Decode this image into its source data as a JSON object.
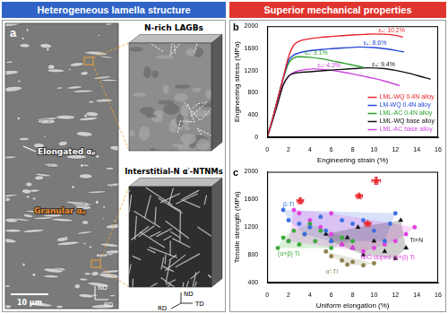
{
  "headers": [
    "Heterogeneous lamella structure",
    "Superior mechanical properties"
  ],
  "panel_a": {
    "letter": "a",
    "micrograph_labels": [
      "Elongated αₚ",
      "Granular αₚ"
    ],
    "scale_bar": "10 μm",
    "micrograph_axes": [
      "ND",
      "RD"
    ],
    "insets": [
      {
        "title": "N-rich LAGBs"
      },
      {
        "title": "Interstitial-N α′-NTNMs",
        "axes": [
          "ND",
          "RD",
          "TD"
        ]
      }
    ]
  },
  "chart_data": [
    {
      "type": "line",
      "panel_label": "b",
      "x_label": "Engineering strain (%)",
      "y_label": "Engineering stress (MPa)",
      "xlim": [
        0,
        16
      ],
      "xticks": [
        0,
        2,
        4,
        6,
        8,
        10,
        12,
        14,
        16
      ],
      "ylim": [
        0,
        2000
      ],
      "yticks": [
        0,
        400,
        800,
        1200,
        1600,
        2000
      ],
      "grid": false,
      "legend": "lower right",
      "series": [
        {
          "name": "LML-WQ 0.4N alloy",
          "color": "#e8262d",
          "annotation": "εᵤ: 10.2%",
          "x": [
            0,
            0.5,
            1,
            1.5,
            2,
            2.5,
            3,
            4,
            5,
            6,
            7,
            8,
            9,
            10,
            11,
            12,
            12.7
          ],
          "values": [
            0,
            330,
            700,
            1070,
            1450,
            1660,
            1730,
            1775,
            1800,
            1815,
            1830,
            1842,
            1852,
            1860,
            1855,
            1835,
            1805
          ]
        },
        {
          "name": "LM-WQ 0.4N alloy",
          "color": "#2445d8",
          "annotation": "εᵤ: 8.6%",
          "x": [
            0,
            0.5,
            1,
            1.5,
            2,
            2.5,
            3,
            4,
            5,
            6,
            7,
            8,
            8.6,
            10,
            11,
            12,
            12.8
          ],
          "values": [
            0,
            330,
            700,
            1070,
            1380,
            1480,
            1520,
            1560,
            1580,
            1595,
            1608,
            1618,
            1625,
            1615,
            1595,
            1565,
            1535
          ]
        },
        {
          "name": "LML-AC 0.4N alloy",
          "color": "#2ca02c",
          "annotation": "εᵤ: 3.1%",
          "x": [
            0,
            0.5,
            1,
            1.5,
            2,
            2.5,
            3.1,
            4,
            5,
            6,
            7,
            8,
            9
          ],
          "values": [
            0,
            330,
            700,
            1050,
            1330,
            1430,
            1450,
            1440,
            1415,
            1380,
            1340,
            1300,
            1260
          ]
        },
        {
          "name": "LML-WQ base alloy",
          "color": "#111111",
          "annotation": "εᵤ: 9.4%",
          "x": [
            0,
            0.5,
            1,
            1.5,
            2,
            2.5,
            3,
            4,
            5,
            6,
            7,
            8,
            9.4,
            11,
            12,
            13,
            14,
            15.3
          ],
          "values": [
            0,
            300,
            620,
            940,
            1100,
            1150,
            1165,
            1180,
            1195,
            1210,
            1222,
            1235,
            1250,
            1235,
            1205,
            1165,
            1115,
            1045
          ]
        },
        {
          "name": "LML-AC base alloy",
          "color": "#cc44dd",
          "annotation": "εᵤ: 4.3%",
          "x": [
            0,
            0.5,
            1,
            1.5,
            2,
            2.5,
            3,
            4.3,
            5,
            6,
            7,
            8,
            9,
            10,
            11,
            12.4
          ],
          "values": [
            0,
            300,
            620,
            940,
            1100,
            1170,
            1200,
            1230,
            1225,
            1205,
            1175,
            1140,
            1100,
            1060,
            1010,
            930
          ]
        }
      ]
    },
    {
      "type": "scatter",
      "panel_label": "c",
      "x_label": "Uniform elongation (%)",
      "y_label": "Tensile strength (MPa)",
      "xlim": [
        0,
        16
      ],
      "xticks": [
        0,
        2,
        4,
        6,
        8,
        10,
        12,
        14,
        16
      ],
      "ylim": [
        400,
        2000
      ],
      "yticks": [
        400,
        800,
        1200,
        1600,
        2000
      ],
      "grid": false,
      "series": [
        {
          "name": "β-Ti",
          "color": "#3b6fe0",
          "marker": "circle",
          "x": [
            1.5,
            2,
            3,
            3.5,
            4,
            5,
            5.5,
            6,
            7,
            8,
            9,
            10,
            11,
            11.5,
            12
          ],
          "values": [
            1450,
            1300,
            1250,
            1100,
            1200,
            1350,
            1150,
            1000,
            1300,
            1250,
            1300,
            1150,
            1000,
            1250,
            1400
          ]
        },
        {
          "name": "(α+β) Ti",
          "color": "#3aaa3a",
          "marker": "circle",
          "x": [
            1,
            1.5,
            2,
            2.5,
            3,
            3.5,
            4,
            4.5,
            5,
            6,
            7,
            8
          ],
          "values": [
            900,
            1050,
            1000,
            1150,
            950,
            1100,
            1250,
            1000,
            1150,
            900,
            1050,
            1000
          ]
        },
        {
          "name": "N/O doped (α+β) Ti",
          "color": "#e040e0",
          "marker": "circle",
          "x": [
            2,
            2.5,
            3,
            4,
            5,
            6,
            6,
            7,
            8,
            9,
            10,
            11,
            12,
            13,
            13.8
          ],
          "values": [
            1000,
            1450,
            1400,
            1300,
            1200,
            1100,
            1400,
            950,
            900,
            850,
            900,
            950,
            1000,
            1100,
            1200
          ]
        },
        {
          "name": "α′-Ti",
          "color": "#8c7f4f",
          "marker": "circle",
          "x": [
            5.5,
            6,
            7,
            7.5,
            8,
            9,
            10
          ],
          "values": [
            850,
            780,
            720,
            660,
            700,
            650,
            680
          ]
        },
        {
          "name": "Ti+N",
          "color": "#111111",
          "marker": "triangle",
          "x": [
            5.5,
            6,
            7,
            7.5,
            8,
            8.5,
            9,
            10,
            11,
            12,
            12.5,
            13
          ],
          "values": [
            1100,
            1000,
            950,
            1050,
            900,
            1200,
            800,
            1000,
            850,
            750,
            1300,
            900
          ]
        },
        {
          "color": "#e8262d",
          "marker": "star",
          "x": [
            3.1,
            8.6,
            10.2,
            9.4
          ],
          "values": [
            1580,
            1650,
            1870,
            1250
          ],
          "x_error": [
            0.3,
            0.3,
            0.4,
            0.3
          ],
          "y_error": [
            40,
            30,
            50,
            30
          ]
        }
      ]
    }
  ]
}
